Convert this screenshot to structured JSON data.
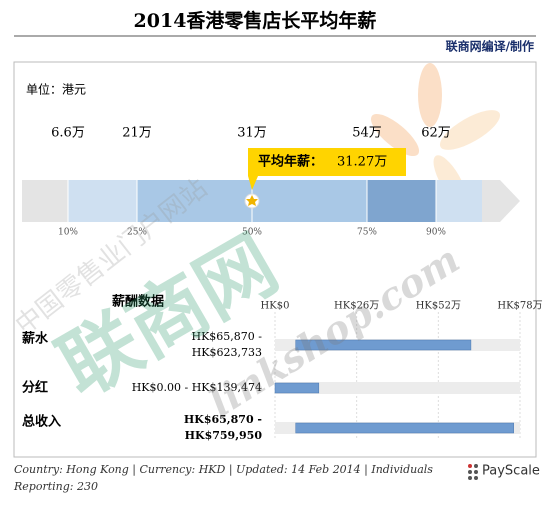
{
  "header": {
    "title": "2014香港零售店长平均年薪",
    "credit": "联商网编译/制作"
  },
  "unit": "单位：港元",
  "watermark": {
    "portal": "中国零售业门户网站",
    "logo": "联商网",
    "url": "linkshop.com"
  },
  "chart_data": [
    {
      "type": "percentile",
      "xlim": [
        0,
        100
      ],
      "xticks": [
        {
          "value": 10,
          "label": "10%"
        },
        {
          "value": 25,
          "label": "25%"
        },
        {
          "value": 50,
          "label": "50%"
        },
        {
          "value": 75,
          "label": "75%"
        },
        {
          "value": 90,
          "label": "90%"
        }
      ],
      "salary_labels": [
        "6.6万",
        "21万",
        "31万",
        "54万",
        "62万"
      ],
      "band_colors": [
        "#e4e4e4",
        "#cfe0f1",
        "#a9c8e6",
        "#a9c8e6",
        "#7fa5cf",
        "#cfe0f1"
      ],
      "average": {
        "label": "平均年薪：",
        "value_label": "31.27万"
      }
    },
    {
      "type": "range_bar",
      "header": "薪酬数据",
      "xlim": [
        0,
        78
      ],
      "xticks": [
        {
          "value": 0,
          "label": "HK$0"
        },
        {
          "value": 26,
          "label": "HK$26万"
        },
        {
          "value": 52,
          "label": "HK$52万"
        },
        {
          "value": 78,
          "label": "HK$78万"
        }
      ],
      "categories": [
        "薪水",
        "分红",
        "总收入"
      ],
      "range_labels": [
        [
          "HK$65,870 -",
          "HK$623,733"
        ],
        [
          "HK$0.00 - HK$139,474"
        ],
        [
          "HK$65,870 -",
          "HK$759,950"
        ]
      ],
      "low": [
        6.587,
        0,
        6.587
      ],
      "high": [
        62.3733,
        13.9474,
        75.995
      ],
      "color": "#6f9bd0"
    }
  ],
  "footer": {
    "note": "Country: Hong Kong | Currency: HKD | Updated: 14 Feb 2014 | Individuals Reporting: 230",
    "brand": "PayScale"
  }
}
